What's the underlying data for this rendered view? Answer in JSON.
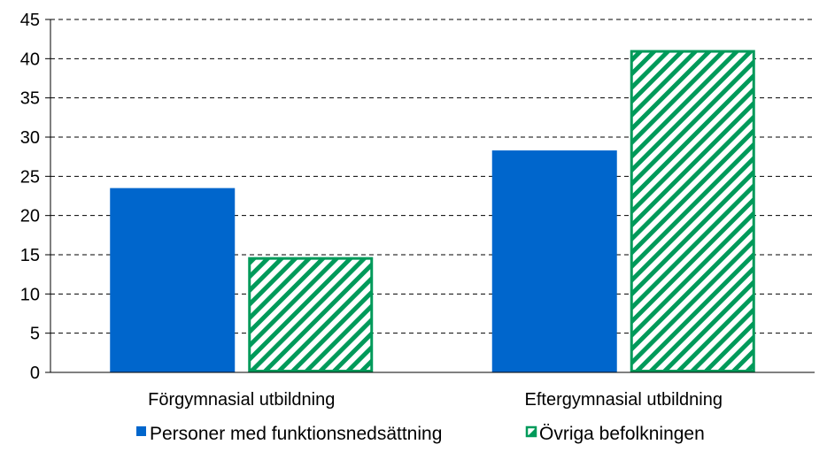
{
  "chart_data": {
    "type": "bar",
    "categories": [
      "Förgymnasial utbildning",
      "Eftergymnasial utbildning"
    ],
    "series": [
      {
        "name": "Personer med funktionsnedsättning",
        "values": [
          23.5,
          28.3
        ],
        "color": "#0066CC",
        "fill": "solid"
      },
      {
        "name": "Övriga befolkningen",
        "values": [
          14.7,
          41.1
        ],
        "color": "#009A5A",
        "fill": "diagonal-hatch"
      }
    ],
    "yticks": [
      "0",
      "5",
      "10",
      "15",
      "20",
      "25",
      "30",
      "35",
      "40",
      "45"
    ],
    "ylim": [
      0,
      45
    ],
    "grid": "dashed-horizontal",
    "legend_position": "bottom",
    "title": "",
    "xlabel": "",
    "ylabel": ""
  }
}
